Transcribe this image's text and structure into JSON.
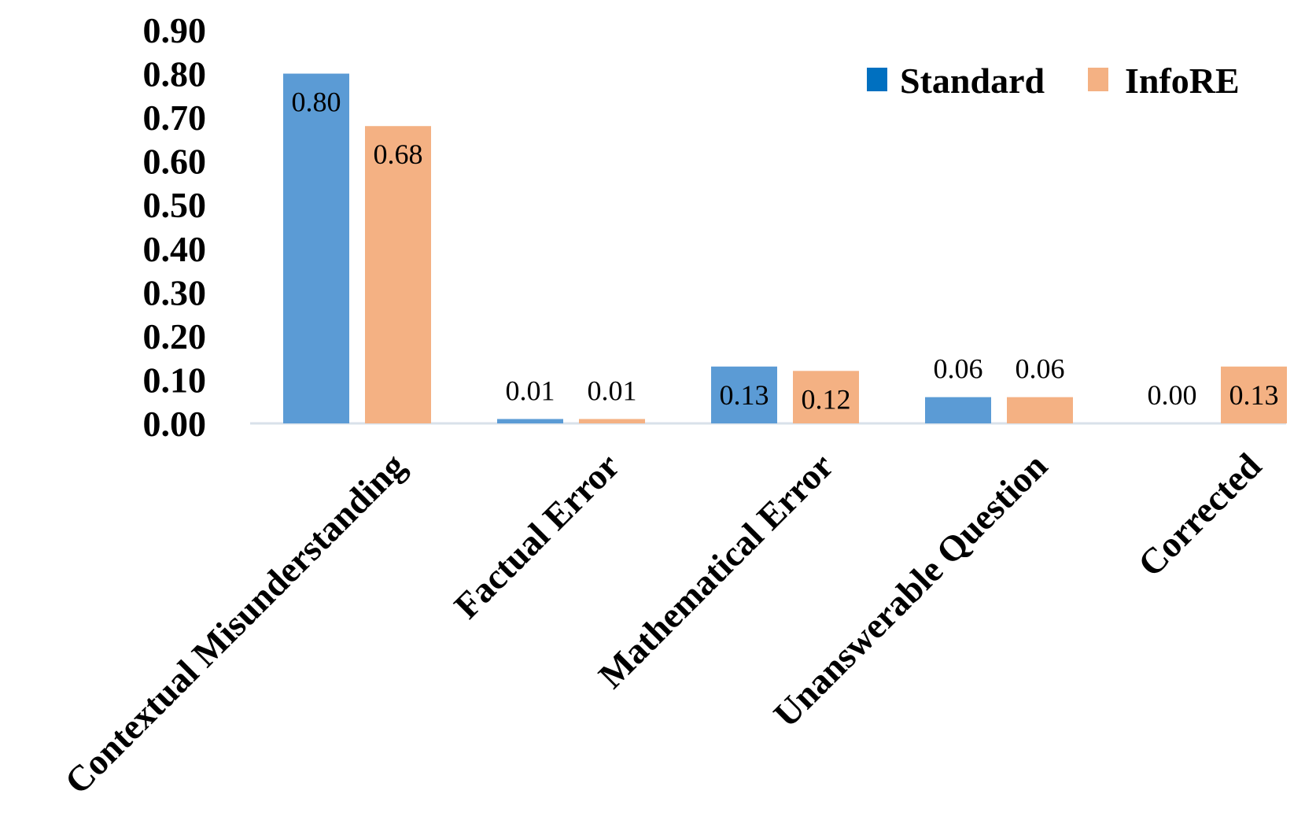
{
  "chart_data": {
    "type": "bar",
    "categories": [
      "Contextual Misunderstanding",
      "Factual Error",
      "Mathematical Error",
      "Unanswerable Question",
      "Corrected"
    ],
    "series": [
      {
        "name": "Standard",
        "color": "#5B9BD5",
        "legend_color": "#0070C0",
        "values": [
          0.8,
          0.01,
          0.13,
          0.06,
          0.0
        ],
        "labels": [
          "0.80",
          "0.01",
          "0.13",
          "0.06",
          "0.00"
        ]
      },
      {
        "name": "InfoRE",
        "color": "#F4B183",
        "legend_color": "#F4B183",
        "values": [
          0.68,
          0.01,
          0.12,
          0.06,
          0.13
        ],
        "labels": [
          "0.68",
          "0.01",
          "0.12",
          "0.06",
          "0.13"
        ]
      }
    ],
    "ylim": [
      0,
      0.9
    ],
    "yticks": [
      0.0,
      0.1,
      0.2,
      0.3,
      0.4,
      0.5,
      0.6,
      0.7,
      0.8,
      0.9
    ],
    "ytick_labels": [
      "0.00",
      "0.10",
      "0.20",
      "0.30",
      "0.40",
      "0.50",
      "0.60",
      "0.70",
      "0.80",
      "0.90"
    ],
    "title": "",
    "xlabel": "",
    "ylabel": "",
    "grid": false,
    "legend_position": "top-right",
    "axis_color": "#D9E1EA"
  }
}
